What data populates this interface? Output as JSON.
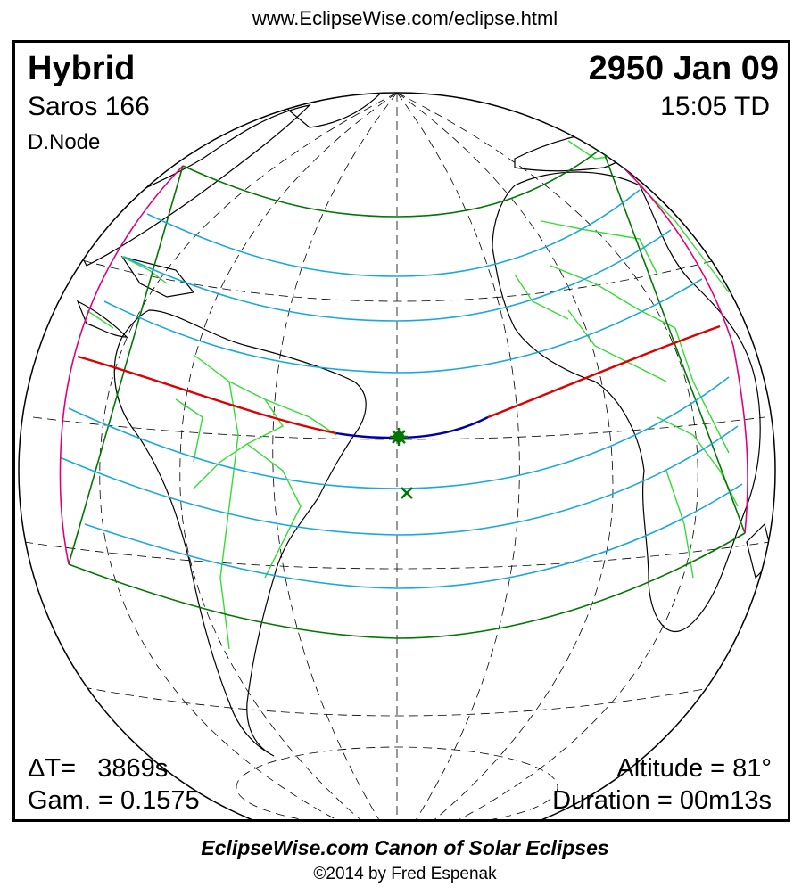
{
  "site_url": "www.EclipseWise.com/eclipse.html",
  "eclipse": {
    "type": "Hybrid",
    "date": "2950 Jan 09",
    "saros": "Saros 166",
    "time": "15:05 TD",
    "node": "D.Node",
    "delta_t": "ΔT=   3869s",
    "gamma": "Gam. = 0.1575",
    "altitude": "Altitude = 81°",
    "duration": "Duration = 00m13s"
  },
  "footer": {
    "canon_title": "EclipseWise.com Canon of Solar Eclipses",
    "copyright": "©2014 by Fred Espenak"
  },
  "colors": {
    "central_path_total": "#0000aa",
    "central_path_annular": "#dd0000",
    "penumbral_limits": "#007700",
    "partial_eclipse_curves": "#1aa7e0",
    "sunrise_sunset_curve": "#e0007a",
    "country_borders": "#33dd33",
    "coastlines": "#000000"
  },
  "markers": {
    "greatest_eclipse": "star",
    "subsolar_point": "x"
  }
}
